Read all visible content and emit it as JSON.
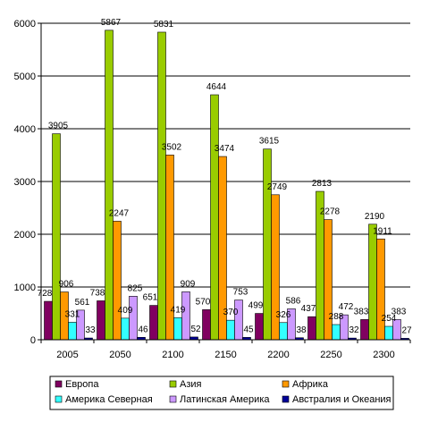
{
  "chart_data": {
    "type": "bar",
    "categories": [
      "2005",
      "2050",
      "2100",
      "2150",
      "2200",
      "2250",
      "2300"
    ],
    "series": [
      {
        "name": "Европа",
        "color": "#800060",
        "values": [
          728,
          738,
          651,
          570,
          499,
          437,
          383
        ]
      },
      {
        "name": "Азия",
        "color": "#99cc00",
        "values": [
          3905,
          5867,
          5831,
          4644,
          3615,
          2813,
          2190
        ]
      },
      {
        "name": "Африка",
        "color": "#ff9900",
        "values": [
          906,
          2247,
          3502,
          3474,
          2749,
          2278,
          1911
        ]
      },
      {
        "name": "Америка Северная",
        "color": "#33ffff",
        "values": [
          331,
          409,
          419,
          370,
          326,
          288,
          254
        ]
      },
      {
        "name": "Латинская Америка",
        "color": "#cc99ff",
        "values": [
          561,
          825,
          909,
          753,
          586,
          472,
          383
        ]
      },
      {
        "name": "Австралия и Океания",
        "color": "#000099",
        "values": [
          33,
          46,
          52,
          45,
          38,
          32,
          27
        ]
      }
    ],
    "y_ticks": [
      0,
      1000,
      2000,
      3000,
      4000,
      5000,
      6000
    ],
    "ylim": [
      0,
      6000
    ],
    "grid": true,
    "legend_position": "bottom"
  }
}
